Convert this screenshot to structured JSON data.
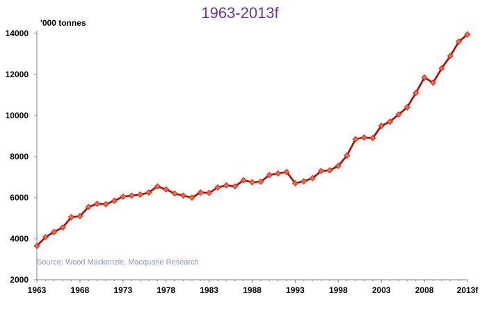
{
  "chart_data": {
    "type": "line",
    "title": "1963-2013f",
    "ylabel": "'000 tonnes",
    "source": "Source: Wood Mackenzie, Macquarie Research",
    "ylim": [
      2000,
      14000
    ],
    "xlim": [
      1963,
      2013
    ],
    "y_ticks": [
      "2000",
      "4000",
      "6000",
      "8000",
      "10000",
      "12000",
      "14000"
    ],
    "x_ticks": [
      "1963",
      "1968",
      "1973",
      "1978",
      "1983",
      "1988",
      "1993",
      "1998",
      "2003",
      "2008",
      "2013f"
    ],
    "grid": false,
    "colors": {
      "line": "#c00000",
      "marker_fill": "#ff6633",
      "marker_stroke": "#b22222",
      "title": "#7030a0",
      "source": "#8e8ed6"
    },
    "series": [
      {
        "x": [
          1963,
          1964,
          1965,
          1966,
          1967,
          1968,
          1969,
          1970,
          1971,
          1972,
          1973,
          1974,
          1975,
          1976,
          1977,
          1978,
          1979,
          1980,
          1981,
          1982,
          1983,
          1984,
          1985,
          1986,
          1987,
          1988,
          1989,
          1990,
          1991,
          1992,
          1993,
          1994,
          1995,
          1996,
          1997,
          1998,
          1999,
          2000,
          2001,
          2002,
          2003,
          2004,
          2005,
          2006,
          2007,
          2008,
          2009,
          2010,
          2011,
          2012,
          2013
        ],
        "values": [
          3650,
          4080,
          4330,
          4550,
          5050,
          5100,
          5550,
          5700,
          5680,
          5850,
          6050,
          6100,
          6150,
          6250,
          6550,
          6400,
          6200,
          6100,
          6000,
          6250,
          6230,
          6500,
          6600,
          6550,
          6850,
          6750,
          6780,
          7100,
          7180,
          7250,
          6700,
          6800,
          6950,
          7300,
          7330,
          7550,
          8050,
          8850,
          8930,
          8900,
          9500,
          9700,
          10050,
          10400,
          11100,
          11850,
          11600,
          12300,
          12900,
          13600,
          13950
        ]
      }
    ]
  }
}
